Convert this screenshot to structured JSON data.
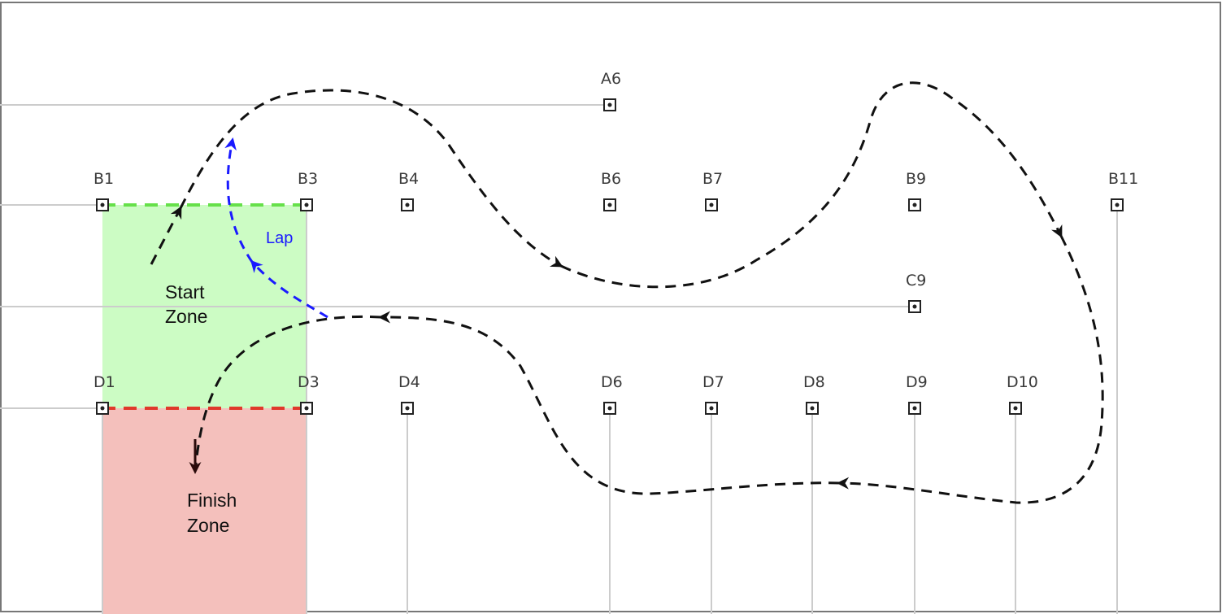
{
  "zones": {
    "start": {
      "label_line1": "Start",
      "label_line2": "Zone",
      "fill": "#ccfcc4",
      "line_color": "#66e04a"
    },
    "finish": {
      "label_line1": "Finish",
      "label_line2": "Zone",
      "fill": "#f4c0bc",
      "line_color": "#e0392b"
    }
  },
  "lap": {
    "label": "Lap",
    "color": "#1a1aff"
  },
  "path_color": "#111111",
  "gridline_color": "#cccccc",
  "nodes": [
    {
      "id": "A6",
      "label": "A6"
    },
    {
      "id": "B1",
      "label": "B1"
    },
    {
      "id": "B3",
      "label": "B3"
    },
    {
      "id": "B4",
      "label": "B4"
    },
    {
      "id": "B6",
      "label": "B6"
    },
    {
      "id": "B7",
      "label": "B7"
    },
    {
      "id": "B9",
      "label": "B9"
    },
    {
      "id": "B11",
      "label": "B11"
    },
    {
      "id": "C9",
      "label": "C9"
    },
    {
      "id": "D1",
      "label": "D1"
    },
    {
      "id": "D3",
      "label": "D3"
    },
    {
      "id": "D4",
      "label": "D4"
    },
    {
      "id": "D6",
      "label": "D6"
    },
    {
      "id": "D7",
      "label": "D7"
    },
    {
      "id": "D8",
      "label": "D8"
    },
    {
      "id": "D9",
      "label": "D9"
    },
    {
      "id": "D10",
      "label": "D10"
    }
  ]
}
